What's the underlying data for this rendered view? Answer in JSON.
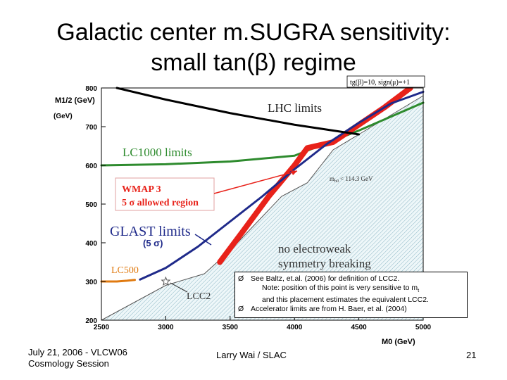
{
  "slide": {
    "title_line1": "Galactic center m.SUGRA sensitivity:",
    "title_line2": "small tan(β) regime",
    "footer_left_line1": "July 21, 2006 - VLCW06",
    "footer_left_line2": "Cosmology Session",
    "footer_center": "Larry Wai / SLAC",
    "page_number": "21"
  },
  "notes": {
    "bullet": "Ø",
    "line1": "See Baltz, et.al. (2006) for definition of LCC2.",
    "line2": "Note: position of this point is very sensitive to  m",
    "line2_sub": "t",
    "line3": "and this placement estimates the equivalent LCC2.",
    "line4": "Accelerator limits are from H. Baer, et al. (2004)"
  },
  "chart_data": {
    "type": "line",
    "title": "",
    "xlabel": "M0 (GeV)",
    "ylabel": "M1/2 (GeV)",
    "xlim": [
      2500,
      5000
    ],
    "ylim": [
      200,
      800
    ],
    "x_ticks": [
      2500,
      3000,
      3500,
      4000,
      4500,
      5000
    ],
    "y_ticks": [
      200,
      300,
      400,
      500,
      600,
      700,
      800
    ],
    "parameter_label": "tg(β)=10, sign(μ)=+1",
    "series": [
      {
        "name": "LHC limits",
        "color": "#000000",
        "x": [
          2620,
          3000,
          3500,
          4000,
          4300,
          4500
        ],
        "y": [
          800,
          770,
          735,
          705,
          690,
          680
        ]
      },
      {
        "name": "LC1000 limits",
        "color": "#2e8b2e",
        "x": [
          2500,
          3000,
          3500,
          4000,
          4500,
          5000
        ],
        "y": [
          600,
          603,
          610,
          625,
          690,
          762
        ]
      },
      {
        "name": "WMAP 3 5σ allowed region",
        "color": "#e8221a",
        "x": [
          3420,
          3600,
          3800,
          4000,
          4100,
          4300,
          4500,
          4700,
          4900
        ],
        "y": [
          350,
          430,
          520,
          600,
          645,
          660,
          705,
          750,
          800
        ]
      },
      {
        "name": "GLAST limits (5σ)",
        "color": "#1f2a8a",
        "x": [
          2800,
          3000,
          3250,
          3500,
          3750,
          4000,
          4250,
          4500,
          4750,
          5000
        ],
        "y": [
          305,
          335,
          390,
          455,
          520,
          590,
          655,
          710,
          760,
          790
        ]
      },
      {
        "name": "no electroweak symmetry breaking",
        "color": "#5a8ea3",
        "x": [
          2500,
          3000,
          3300,
          3500,
          3700,
          3900,
          4100,
          4300,
          4500,
          4700,
          5000
        ],
        "y": [
          200,
          290,
          320,
          380,
          450,
          520,
          555,
          640,
          680,
          720,
          780
        ]
      },
      {
        "name": "LC500",
        "color": "#e07a10",
        "x": [
          2500,
          2620,
          2700,
          2760
        ],
        "y": [
          300,
          300,
          302,
          304
        ]
      }
    ],
    "points": [
      {
        "name": "LCC2",
        "x": [
          3000
        ],
        "y": [
          300
        ]
      }
    ],
    "annotations": {
      "mh_label": "m",
      "mh_sub": "h0",
      "mh_value": "< 114.3 GeV",
      "lhc": "LHC limits",
      "lc1000": "LC1000 limits",
      "wmap_line1": "WMAP 3",
      "wmap_line2": "5 σ allowed region",
      "glast": "GLAST limits",
      "glast_sigma": "(5 σ)",
      "ewsb_line1": "no electroweak",
      "ewsb_line2": "symmetry breaking",
      "lc500": "LC500",
      "lcc2": "LCC2"
    }
  }
}
